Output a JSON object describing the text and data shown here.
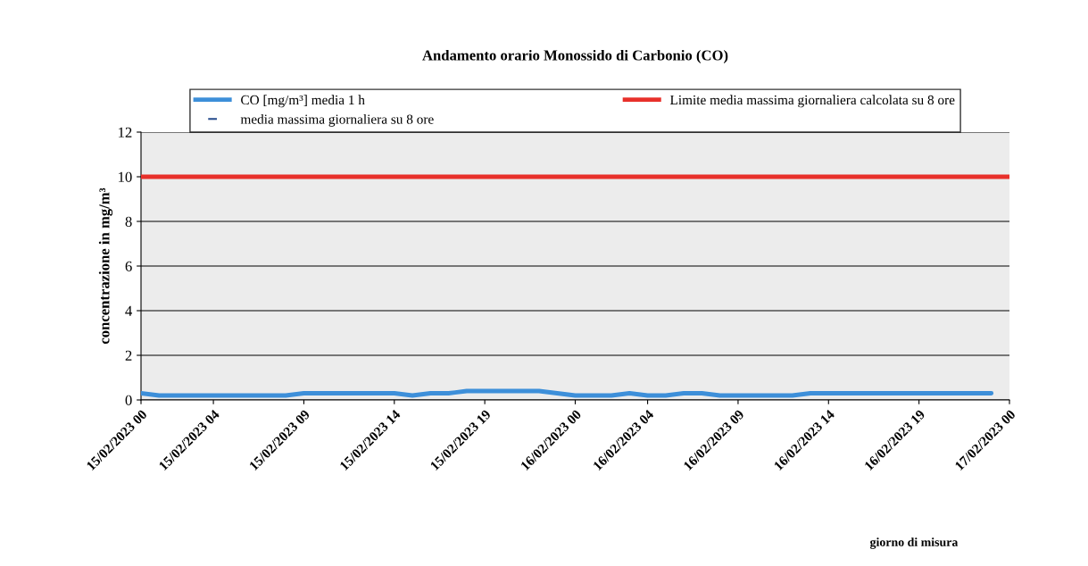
{
  "chart_data": {
    "type": "line",
    "title": "Andamento orario Monossido di Carbonio (CO)",
    "annotations": [
      "giorno di misura"
    ],
    "ylabel": "concentrazione in mg/m³",
    "ylim": [
      0,
      12
    ],
    "yticks": [
      0,
      2,
      4,
      6,
      8,
      10,
      12
    ],
    "categories": [
      "15/02/2023 00",
      null,
      null,
      null,
      "15/02/2023 04",
      null,
      null,
      null,
      null,
      "15/02/2023 09",
      null,
      null,
      null,
      null,
      "15/02/2023 14",
      null,
      null,
      null,
      null,
      "15/02/2023 19",
      null,
      null,
      null,
      null,
      "16/02/2023 00",
      null,
      null,
      null,
      "16/02/2023 04",
      null,
      null,
      null,
      null,
      "16/02/2023 09",
      null,
      null,
      null,
      null,
      "16/02/2023 14",
      null,
      null,
      null,
      null,
      "16/02/2023 19",
      null,
      null,
      null,
      null,
      "17/02/2023 00"
    ],
    "grid": "y",
    "legend": "top",
    "marker": "none",
    "line_style": "solid",
    "series": [
      {
        "name": "CO [mg/m³] media 1 h",
        "color": "#3d8fd9",
        "values": [
          0.3,
          0.2,
          0.2,
          0.2,
          0.2,
          0.2,
          0.2,
          0.2,
          0.2,
          0.3,
          0.3,
          0.3,
          0.3,
          0.3,
          0.3,
          0.2,
          0.3,
          0.3,
          0.4,
          0.4,
          0.4,
          0.4,
          0.4,
          0.3,
          0.2,
          0.2,
          0.2,
          0.3,
          0.2,
          0.2,
          0.3,
          0.3,
          0.2,
          0.2,
          0.2,
          0.2,
          0.2,
          0.3,
          0.3,
          0.3,
          0.3,
          0.3,
          0.3,
          0.3,
          0.3,
          0.3,
          0.3,
          0.3,
          null
        ]
      },
      {
        "name": "Limite media massima giornaliera calcolata su 8 ore",
        "color": "#e8302a",
        "values": [
          10,
          10,
          10,
          10,
          10,
          10,
          10,
          10,
          10,
          10,
          10,
          10,
          10,
          10,
          10,
          10,
          10,
          10,
          10,
          10,
          10,
          10,
          10,
          10,
          10,
          10,
          10,
          10,
          10,
          10,
          10,
          10,
          10,
          10,
          10,
          10,
          10,
          10,
          10,
          10,
          10,
          10,
          10,
          10,
          10,
          10,
          10,
          10,
          10
        ]
      },
      {
        "name": "media massima giornaliera su 8 ore",
        "type": "scatter",
        "marker": "dash",
        "color": "#2a4f8f",
        "values": [
          null,
          null,
          null,
          null,
          null,
          null,
          null,
          null,
          null,
          null,
          null,
          null,
          null,
          null,
          null,
          null,
          null,
          null,
          null,
          null,
          null,
          null,
          null,
          null,
          null,
          null,
          null,
          null,
          null,
          null,
          null,
          null,
          null,
          null,
          null,
          null,
          null,
          null,
          null,
          null,
          null,
          null,
          null,
          null,
          null,
          null,
          null,
          null,
          null
        ]
      }
    ]
  }
}
